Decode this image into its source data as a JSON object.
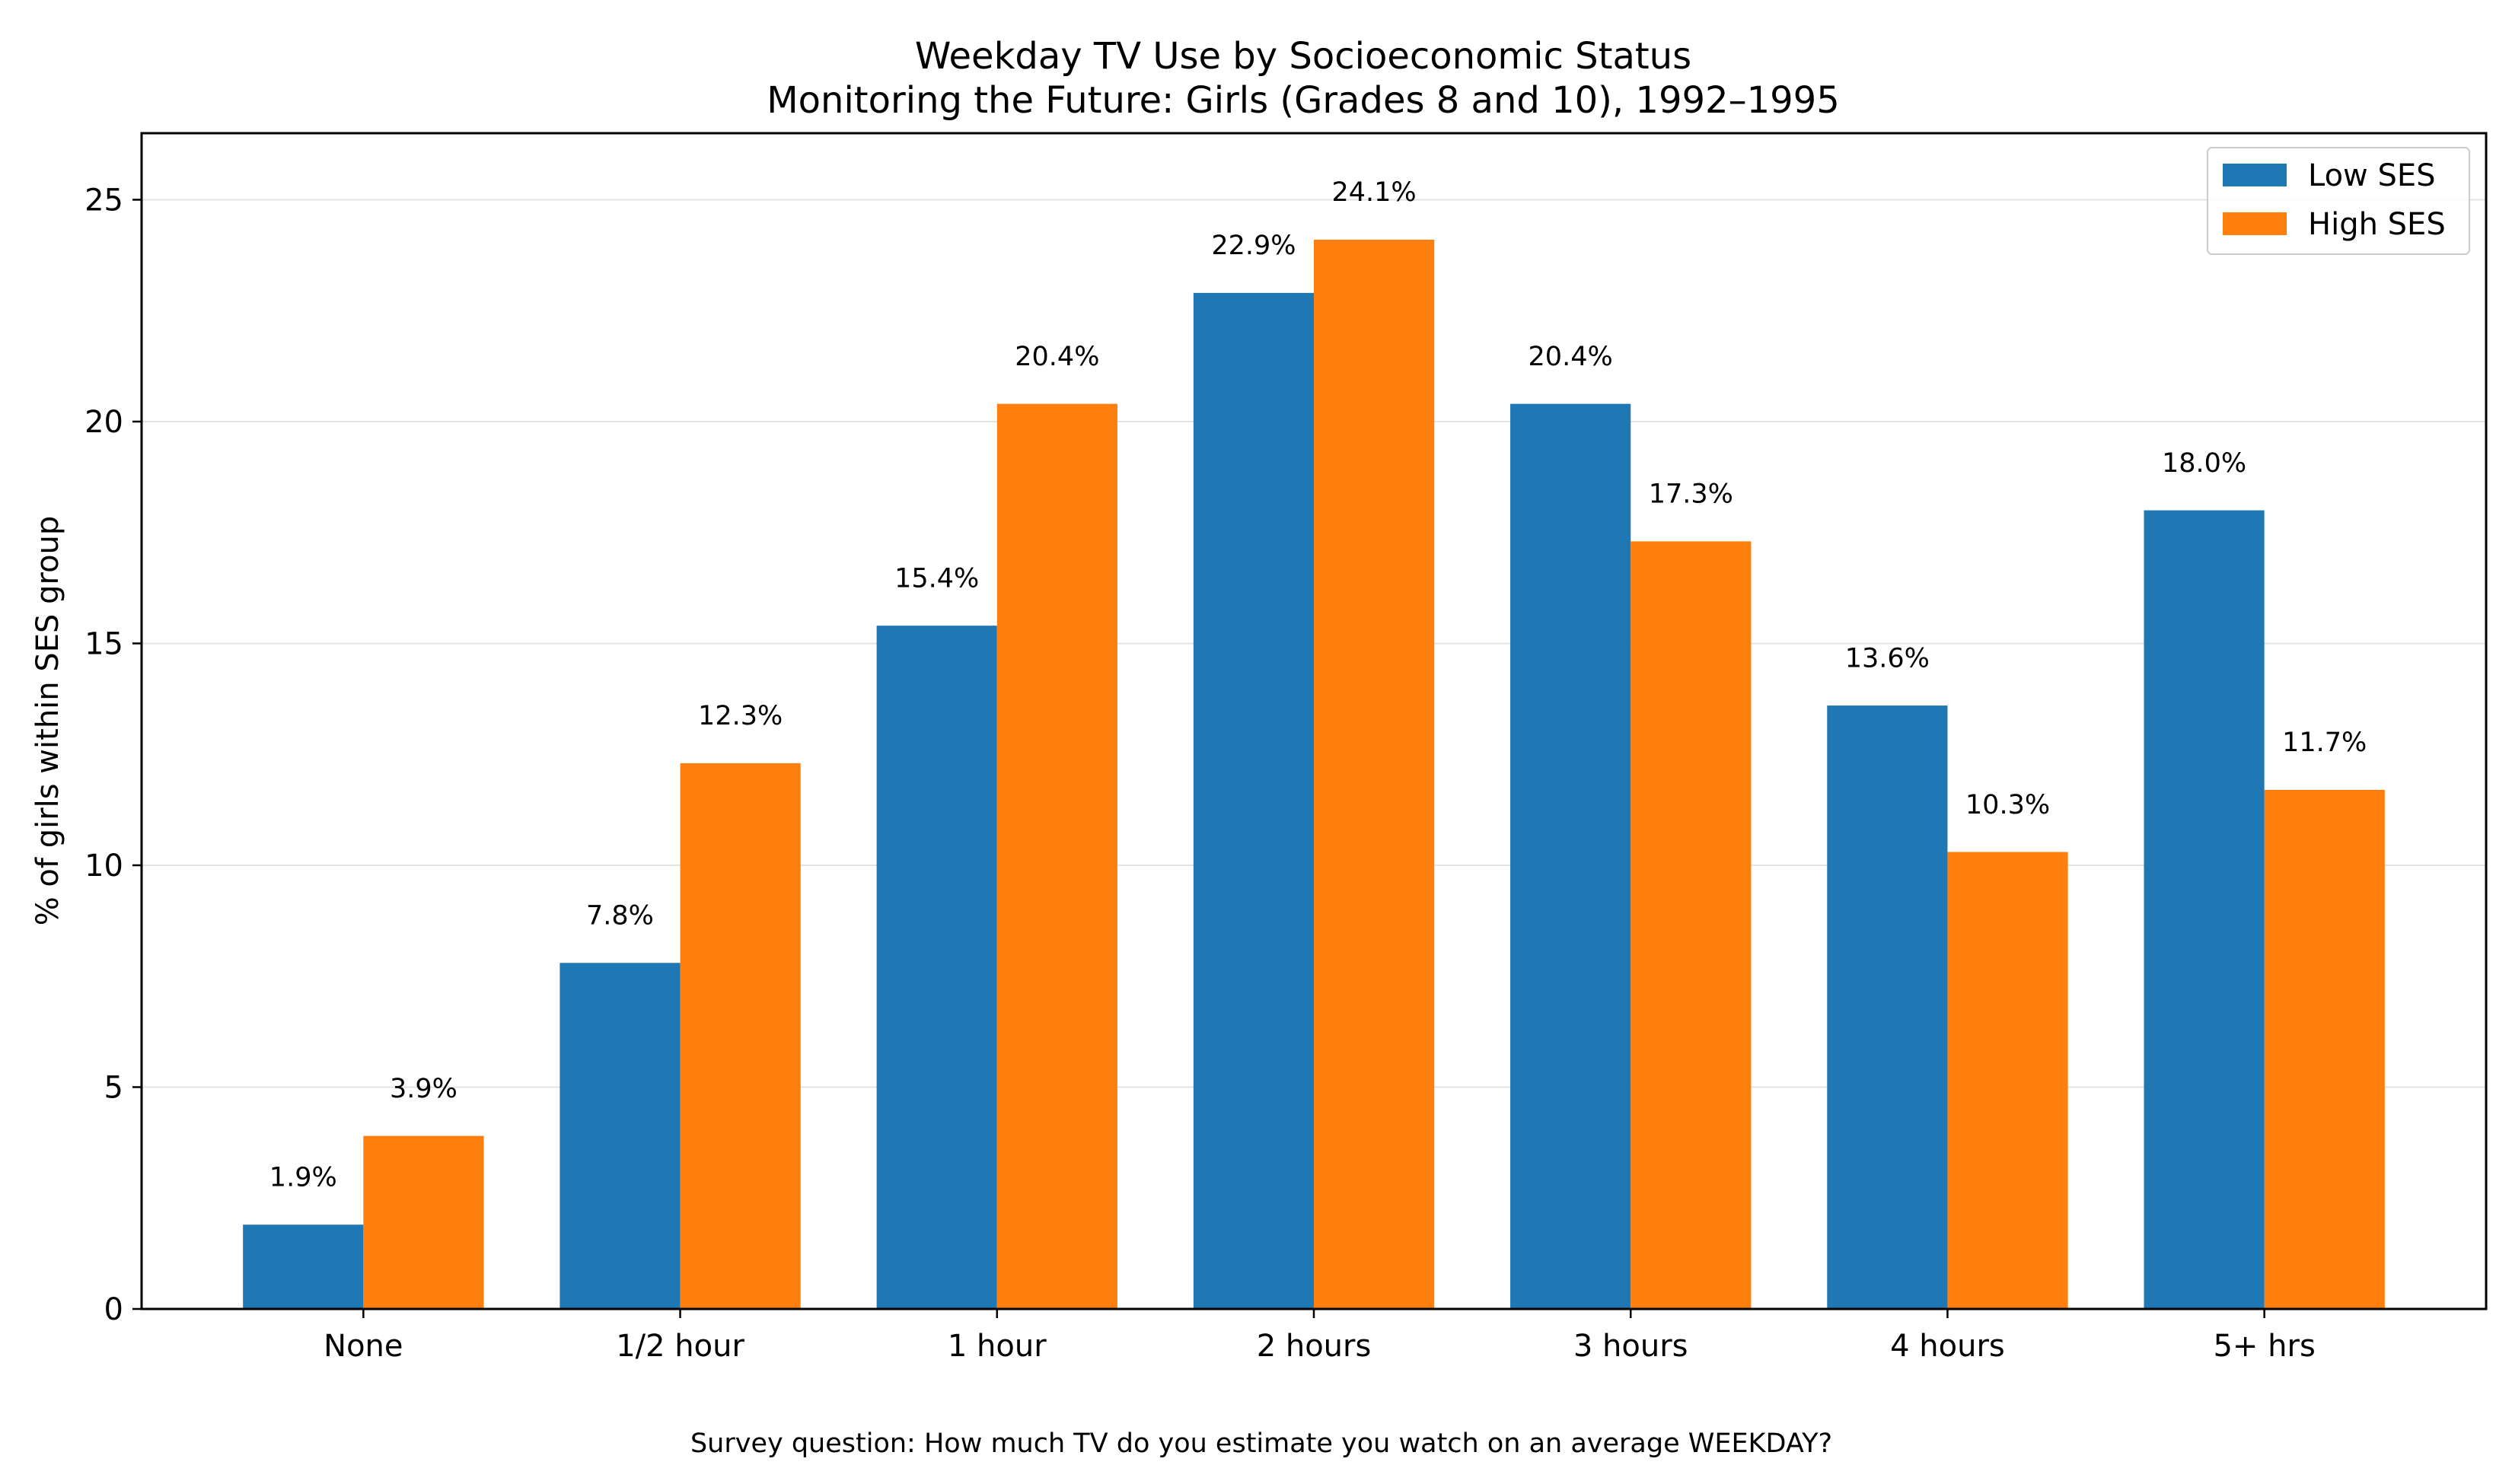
{
  "chart_data": {
    "type": "bar",
    "title": "Weekday TV Use by Socioeconomic Status",
    "subtitle": "Monitoring the Future: Girls (Grades 8 and 10), 1992–1995",
    "xlabel": "",
    "ylabel": "% of girls within SES group",
    "footnote": "Survey question: How much TV do you estimate you watch on an average WEEKDAY?",
    "categories": [
      "None",
      "1/2 hour",
      "1 hour",
      "2 hours",
      "3 hours",
      "4 hours",
      "5+ hrs"
    ],
    "series": [
      {
        "name": "Low SES",
        "color": "#1f77b4",
        "values": [
          1.9,
          7.8,
          15.4,
          22.9,
          20.4,
          13.6,
          18.0
        ],
        "labels": [
          "1.9%",
          "7.8%",
          "15.4%",
          "22.9%",
          "20.4%",
          "13.6%",
          "18.0%"
        ]
      },
      {
        "name": "High SES",
        "color": "#ff7f0e",
        "values": [
          3.9,
          12.3,
          20.4,
          24.1,
          17.3,
          10.3,
          11.7
        ],
        "labels": [
          "3.9%",
          "12.3%",
          "20.4%",
          "24.1%",
          "17.3%",
          "10.3%",
          "11.7%"
        ]
      }
    ],
    "ylim": [
      0,
      26.5
    ],
    "yticks": [
      0,
      5,
      10,
      15,
      20,
      25
    ],
    "ytick_labels": [
      "0",
      "5",
      "10",
      "15",
      "20",
      "25"
    ],
    "grid": "horizontal",
    "legend_position": "top-right"
  }
}
